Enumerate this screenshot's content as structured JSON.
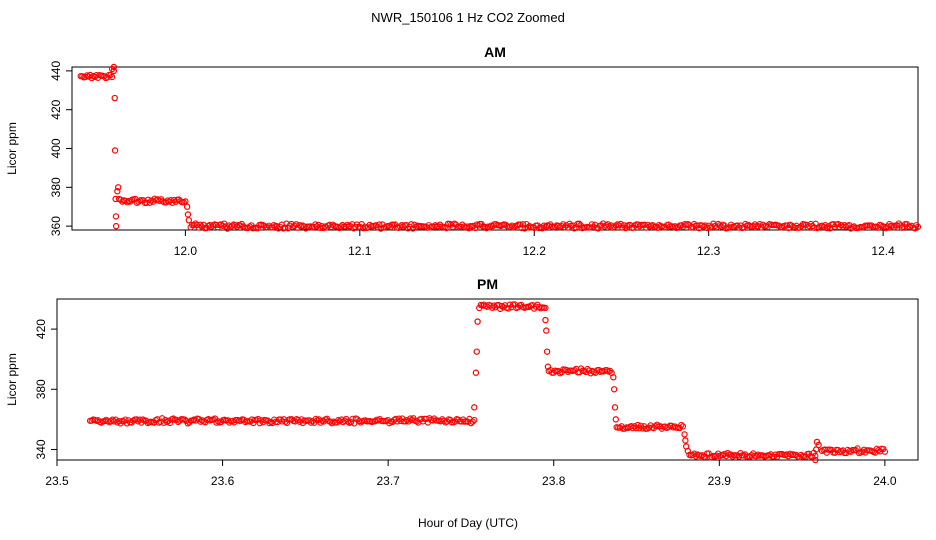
{
  "title": "NWR_150106  1 Hz CO2 Zoomed",
  "xlabel": "Hour of Day (UTC)",
  "colors": {
    "points": "#ff0000",
    "axis": "#000000"
  },
  "chart_data": [
    {
      "type": "scatter",
      "title": "AM",
      "ylabel": "Licor ppm",
      "xlim": [
        11.935,
        12.42
      ],
      "ylim": [
        358,
        442
      ],
      "xticks": [
        12.0,
        12.1,
        12.2,
        12.3,
        12.4
      ],
      "xtick_labels": [
        "12.0",
        "12.1",
        "12.2",
        "12.3",
        "12.4"
      ],
      "yticks": [
        360,
        380,
        400,
        420,
        440
      ],
      "ytick_labels": [
        "360",
        "380",
        "400",
        "420",
        "440"
      ],
      "series": [
        {
          "segments": [
            {
              "x0": 11.94,
              "x1": 11.958,
              "y0": 437,
              "y1": 437
            },
            {
              "x0": 11.962,
              "x1": 12.0,
              "y0": 373,
              "y1": 373
            },
            {
              "x0": 12.003,
              "x1": 12.42,
              "y0": 360,
              "y1": 360
            }
          ],
          "points": [
            {
              "x": 11.958,
              "y": 441
            },
            {
              "x": 11.959,
              "y": 442
            },
            {
              "x": 11.959,
              "y": 440
            },
            {
              "x": 11.9595,
              "y": 426
            },
            {
              "x": 11.9597,
              "y": 399
            },
            {
              "x": 11.96,
              "y": 374
            },
            {
              "x": 11.9602,
              "y": 365
            },
            {
              "x": 11.9603,
              "y": 360
            },
            {
              "x": 11.961,
              "y": 378
            },
            {
              "x": 11.9615,
              "y": 380
            },
            {
              "x": 12.001,
              "y": 370
            },
            {
              "x": 12.0015,
              "y": 366
            },
            {
              "x": 12.002,
              "y": 363
            }
          ]
        }
      ]
    },
    {
      "type": "scatter",
      "title": "PM",
      "ylabel": "Licor ppm",
      "xlim": [
        23.5,
        24.02
      ],
      "ylim": [
        333,
        440
      ],
      "xticks": [
        23.5,
        23.6,
        23.7,
        23.8,
        23.9,
        24.0
      ],
      "xtick_labels": [
        "23.5",
        "23.6",
        "23.7",
        "23.8",
        "23.9",
        "24.0"
      ],
      "yticks": [
        340,
        380,
        420
      ],
      "ytick_labels": [
        "340",
        "380",
        "420"
      ],
      "series": [
        {
          "segments": [
            {
              "x0": 23.52,
              "x1": 23.752,
              "y0": 359,
              "y1": 359
            },
            {
              "x0": 23.755,
              "x1": 23.795,
              "y0": 435,
              "y1": 435
            },
            {
              "x0": 23.797,
              "x1": 23.835,
              "y0": 392,
              "y1": 392
            },
            {
              "x0": 23.838,
              "x1": 23.878,
              "y0": 355,
              "y1": 355
            },
            {
              "x0": 23.882,
              "x1": 23.958,
              "y0": 336,
              "y1": 336
            },
            {
              "x0": 23.962,
              "x1": 24.0,
              "y0": 339,
              "y1": 339
            }
          ],
          "points": [
            {
              "x": 23.752,
              "y": 368
            },
            {
              "x": 23.753,
              "y": 391
            },
            {
              "x": 23.7535,
              "y": 405
            },
            {
              "x": 23.754,
              "y": 425
            },
            {
              "x": 23.795,
              "y": 426
            },
            {
              "x": 23.7955,
              "y": 419
            },
            {
              "x": 23.796,
              "y": 405
            },
            {
              "x": 23.7965,
              "y": 395
            },
            {
              "x": 23.836,
              "y": 388
            },
            {
              "x": 23.8365,
              "y": 380
            },
            {
              "x": 23.837,
              "y": 368
            },
            {
              "x": 23.8375,
              "y": 360
            },
            {
              "x": 23.879,
              "y": 350
            },
            {
              "x": 23.8795,
              "y": 346
            },
            {
              "x": 23.88,
              "y": 342
            },
            {
              "x": 23.881,
              "y": 339
            },
            {
              "x": 23.958,
              "y": 333
            },
            {
              "x": 23.9585,
              "y": 340
            },
            {
              "x": 23.959,
              "y": 345
            },
            {
              "x": 23.96,
              "y": 343
            }
          ]
        }
      ]
    }
  ]
}
